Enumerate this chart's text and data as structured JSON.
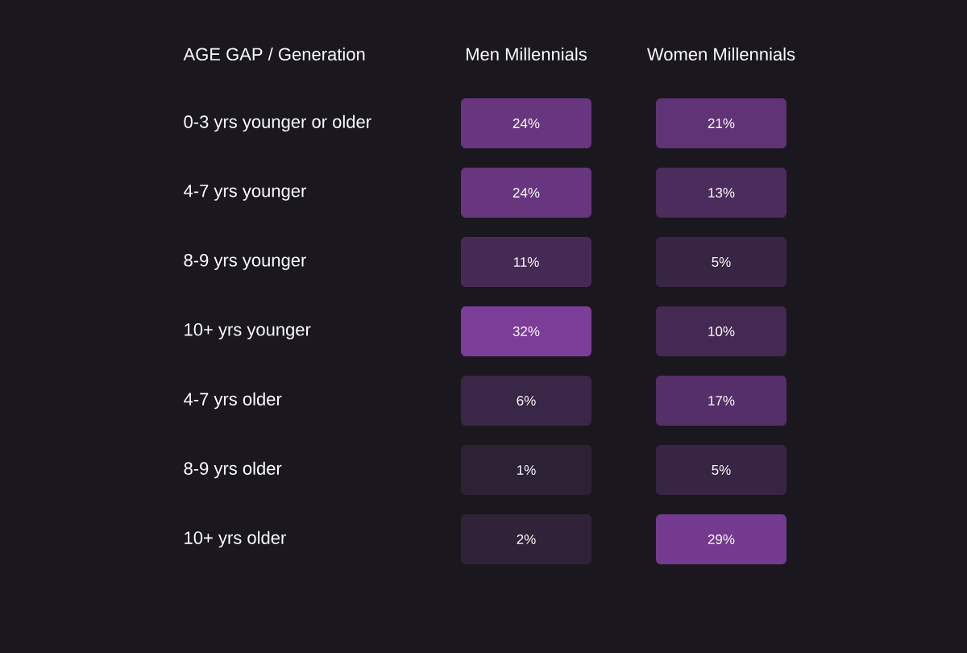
{
  "chart_data": {
    "type": "heatmap",
    "ylabel": "AGE GAP / Generation",
    "categories": [
      "Men Millennials",
      "Women Millennials"
    ],
    "y_categories": [
      "0-3 yrs younger or older",
      "4-7 yrs younger",
      "8-9 yrs younger",
      "10+ yrs younger",
      "4-7 yrs older",
      "8-9 yrs older",
      "10+ yrs older"
    ],
    "cells": [
      [
        24,
        21
      ],
      [
        24,
        13
      ],
      [
        11,
        5
      ],
      [
        32,
        10
      ],
      [
        6,
        17
      ],
      [
        1,
        5
      ],
      [
        2,
        29
      ]
    ],
    "cell_labels": [
      [
        "24%",
        "21%"
      ],
      [
        "24%",
        "13%"
      ],
      [
        "11%",
        "5%"
      ],
      [
        "32%",
        "10%"
      ],
      [
        "6%",
        "17%"
      ],
      [
        "1%",
        "5%"
      ],
      [
        "2%",
        "29%"
      ]
    ]
  }
}
